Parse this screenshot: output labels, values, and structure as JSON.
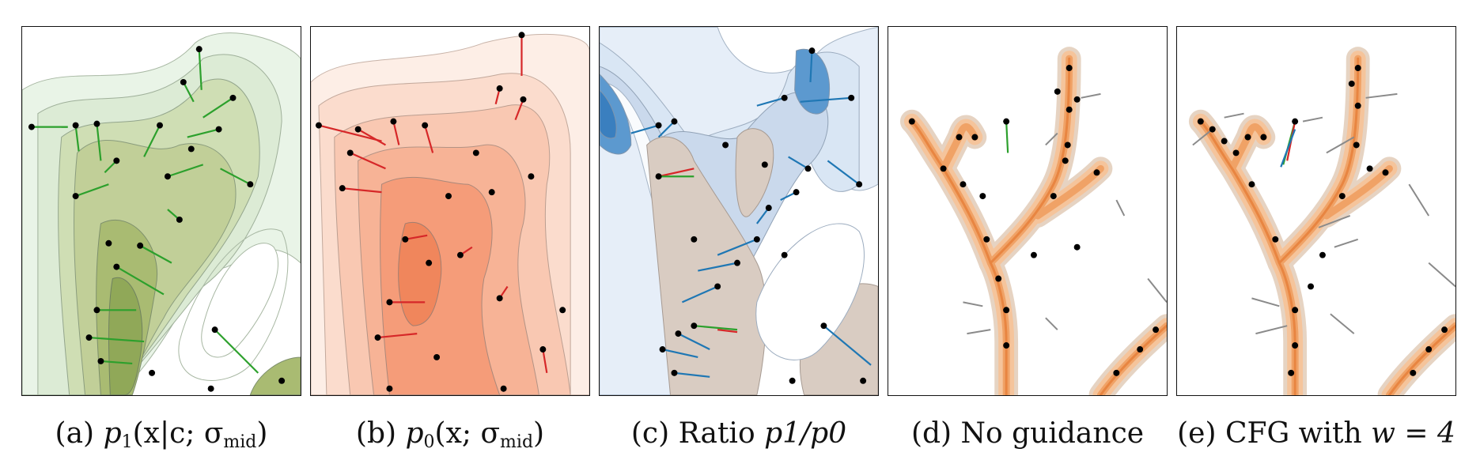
{
  "figure": {
    "panels": [
      {
        "id": "a",
        "caption": {
          "prefix": "(a)",
          "sym": "p",
          "sub": "1",
          "args": "(x|c; σ",
          "argsub": "mid",
          "close": ")"
        },
        "palette": "green"
      },
      {
        "id": "b",
        "caption": {
          "prefix": "(b)",
          "sym": "p",
          "sub": "0",
          "args": "(x; σ",
          "argsub": "mid",
          "close": ")"
        },
        "palette": "red"
      },
      {
        "id": "c",
        "caption": {
          "prefix": "(c) Ratio",
          "formula": "p1/p0"
        },
        "palette": "blue"
      },
      {
        "id": "d",
        "caption": {
          "text": "(d) No guidance"
        },
        "palette": "orange"
      },
      {
        "id": "e",
        "caption": {
          "prefix": "(e) CFG with",
          "formula": "w = 4"
        },
        "palette": "orange"
      }
    ],
    "colors": {
      "green": "#2ca02c",
      "red": "#d62728",
      "blue": "#1f77b4",
      "orange": "#f29a4a",
      "points": "#000000",
      "trails": "#8a8a8a"
    }
  }
}
